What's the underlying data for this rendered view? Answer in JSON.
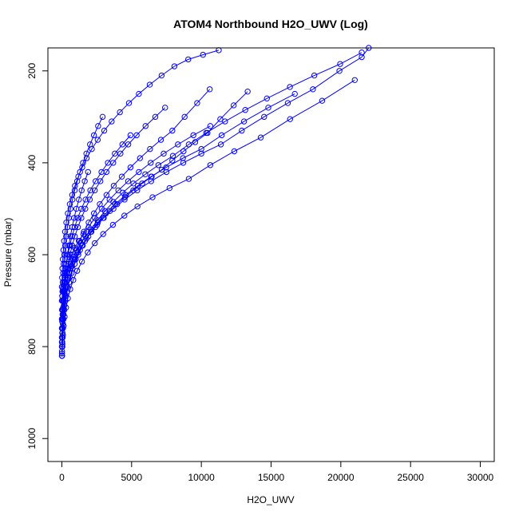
{
  "chart_data": {
    "type": "scatter",
    "title": "ATOM4 Northbound H2O_UWV (Log)",
    "xlabel": "H2O_UWV",
    "ylabel": "Pressure (mbar)",
    "xlim": [
      -1000,
      31000
    ],
    "ylim": [
      1050,
      150
    ],
    "y_reversed": true,
    "x_ticks": [
      0,
      5000,
      10000,
      15000,
      20000,
      25000,
      30000
    ],
    "x_tick_labels": [
      "0",
      "5000",
      "10000",
      "15000",
      "20000",
      "25000",
      "30000"
    ],
    "y_ticks": [
      200,
      400,
      600,
      800,
      1000
    ],
    "y_tick_labels": [
      "200",
      "400",
      "600",
      "800",
      "1000"
    ],
    "grid": false,
    "marker": "open-circle",
    "line_style": "solid",
    "colors": {
      "series": "#0000ff",
      "axis": "#000000",
      "background": "#ffffff"
    },
    "series": [
      {
        "name": "",
        "x": [
          20,
          40,
          60,
          80,
          120,
          180,
          260,
          380,
          520,
          700,
          920,
          1180,
          1500,
          1900,
          2400,
          3000,
          3700,
          4500,
          5400,
          6400,
          7500,
          8700,
          10000,
          11400,
          12900,
          14500,
          16200,
          18000,
          19900,
          21500,
          22000
        ],
        "y": [
          820,
          800,
          780,
          760,
          740,
          720,
          700,
          680,
          660,
          640,
          620,
          600,
          580,
          560,
          540,
          520,
          500,
          480,
          460,
          440,
          420,
          400,
          380,
          360,
          330,
          300,
          270,
          240,
          200,
          170,
          150
        ]
      },
      {
        "name": "",
        "x": [
          10,
          30,
          50,
          70,
          100,
          150,
          220,
          320,
          450,
          610,
          800,
          1020,
          1280,
          1580,
          1920,
          2300,
          2720,
          3200,
          3720,
          4300,
          4920,
          5600,
          6320,
          7100,
          7920,
          8800,
          9700,
          10600
        ],
        "y": [
          810,
          790,
          770,
          750,
          730,
          710,
          690,
          670,
          650,
          630,
          610,
          590,
          570,
          550,
          530,
          510,
          490,
          470,
          450,
          430,
          410,
          390,
          370,
          350,
          330,
          300,
          270,
          240
        ]
      },
      {
        "name": "",
        "x": [
          0,
          20,
          40,
          60,
          90,
          130,
          180,
          250,
          340,
          450,
          580,
          740,
          930,
          1150,
          1400,
          1680,
          2000,
          2360,
          2760,
          3200,
          3680,
          4200,
          4760,
          5360,
          6000,
          6700,
          7400
        ],
        "y": [
          800,
          780,
          760,
          740,
          720,
          700,
          680,
          660,
          640,
          620,
          600,
          580,
          560,
          540,
          520,
          500,
          480,
          460,
          440,
          420,
          400,
          380,
          360,
          340,
          320,
          300,
          280
        ]
      },
      {
        "name": "",
        "x": [
          0,
          30,
          70,
          120,
          190,
          280,
          400,
          560,
          760,
          1000,
          1300,
          1660,
          2080,
          2580,
          3160,
          3820,
          4580,
          5440,
          6400,
          7480,
          8680,
          10000,
          11460,
          13060,
          14800,
          16700
        ],
        "y": [
          790,
          770,
          750,
          730,
          710,
          690,
          670,
          650,
          630,
          610,
          590,
          570,
          550,
          530,
          510,
          490,
          470,
          450,
          430,
          410,
          390,
          370,
          340,
          310,
          280,
          250
        ]
      },
      {
        "name": "",
        "x": [
          10,
          40,
          80,
          130,
          200,
          300,
          430,
          600,
          820,
          1100,
          1440,
          1860,
          2360,
          2960,
          3660,
          4480,
          5420,
          6500,
          7720,
          9100,
          10640,
          12360,
          14260,
          16360,
          18660,
          21000
        ],
        "y": [
          815,
          795,
          775,
          755,
          735,
          715,
          695,
          675,
          655,
          635,
          615,
          595,
          575,
          555,
          535,
          515,
          495,
          475,
          455,
          435,
          405,
          375,
          345,
          305,
          265,
          220
        ]
      },
      {
        "name": "",
        "x": [
          0,
          10,
          30,
          50,
          80,
          120,
          170,
          240,
          330,
          440,
          570,
          730,
          920,
          1140,
          1400,
          1700,
          2040,
          2420,
          2840,
          3300,
          3800,
          4340,
          4920
        ],
        "y": [
          780,
          760,
          740,
          720,
          700,
          680,
          660,
          640,
          620,
          600,
          580,
          560,
          540,
          520,
          500,
          480,
          460,
          440,
          420,
          400,
          380,
          360,
          340
        ]
      },
      {
        "name": "",
        "x": [
          0,
          20,
          50,
          90,
          140,
          210,
          300,
          410,
          550,
          720,
          920,
          1160,
          1440,
          1760,
          2120,
          2520,
          2960,
          3440,
          3960,
          4520,
          5120,
          5760,
          6440,
          7160,
          7920,
          8720,
          9560,
          10440,
          11360,
          12320,
          13320
        ],
        "y": [
          760,
          745,
          730,
          715,
          700,
          685,
          670,
          655,
          640,
          625,
          610,
          595,
          580,
          565,
          550,
          535,
          520,
          505,
          490,
          475,
          460,
          445,
          430,
          415,
          395,
          375,
          355,
          335,
          305,
          275,
          245
        ]
      },
      {
        "name": "",
        "x": [
          0,
          10,
          20,
          40,
          60,
          90,
          130,
          180,
          240,
          310,
          400,
          500,
          620,
          760,
          920,
          1100,
          1300,
          1520,
          1760,
          2020,
          2300,
          2600,
          2920
        ],
        "y": [
          740,
          720,
          700,
          680,
          660,
          640,
          620,
          600,
          580,
          560,
          540,
          520,
          500,
          480,
          460,
          440,
          420,
          400,
          380,
          360,
          340,
          320,
          300
        ]
      },
      {
        "name": "",
        "x": [
          0,
          30,
          60,
          100,
          160,
          240,
          340,
          470,
          630,
          830,
          1070,
          1360,
          1700,
          2100,
          2560,
          3090,
          3690,
          4370,
          5130,
          5980,
          6920,
          7960,
          9100,
          10350,
          11700,
          13150,
          14700,
          16350,
          18100,
          19950,
          21500
        ],
        "y": [
          700,
          690,
          680,
          670,
          660,
          650,
          640,
          630,
          620,
          605,
          590,
          575,
          560,
          545,
          525,
          505,
          485,
          465,
          445,
          425,
          405,
          385,
          360,
          335,
          310,
          285,
          260,
          235,
          210,
          185,
          160
        ]
      },
      {
        "name": "",
        "x": [
          0,
          10,
          20,
          30,
          50,
          70,
          100,
          140,
          190,
          250,
          320,
          400,
          500,
          610,
          740,
          880,
          1040,
          1220,
          1420,
          1640,
          1880
        ],
        "y": [
          820,
          800,
          780,
          760,
          740,
          720,
          700,
          680,
          660,
          640,
          620,
          600,
          580,
          560,
          540,
          520,
          500,
          480,
          460,
          440,
          420
        ]
      },
      {
        "name": "",
        "x": [
          30,
          80,
          150,
          240,
          360,
          510,
          700,
          930,
          1210,
          1540,
          1920,
          2360,
          2860,
          3420,
          4050,
          4750,
          5520,
          6370,
          7300,
          8320,
          9430,
          10640
        ],
        "y": [
          690,
          675,
          660,
          645,
          630,
          615,
          600,
          585,
          570,
          555,
          540,
          520,
          500,
          480,
          460,
          440,
          420,
          400,
          380,
          360,
          340,
          320
        ]
      },
      {
        "name": "",
        "x": [
          0,
          20,
          40,
          70,
          110,
          160,
          230,
          320,
          430,
          570,
          740,
          940,
          1180,
          1460,
          1780,
          2150,
          2570,
          3040,
          3570,
          4160,
          4810,
          5520,
          6300,
          7150,
          8070,
          9060,
          10120,
          11250
        ],
        "y": [
          670,
          650,
          630,
          610,
          590,
          570,
          550,
          530,
          510,
          490,
          470,
          450,
          430,
          410,
          390,
          370,
          350,
          330,
          310,
          290,
          270,
          250,
          230,
          210,
          190,
          175,
          165,
          155
        ]
      }
    ]
  }
}
